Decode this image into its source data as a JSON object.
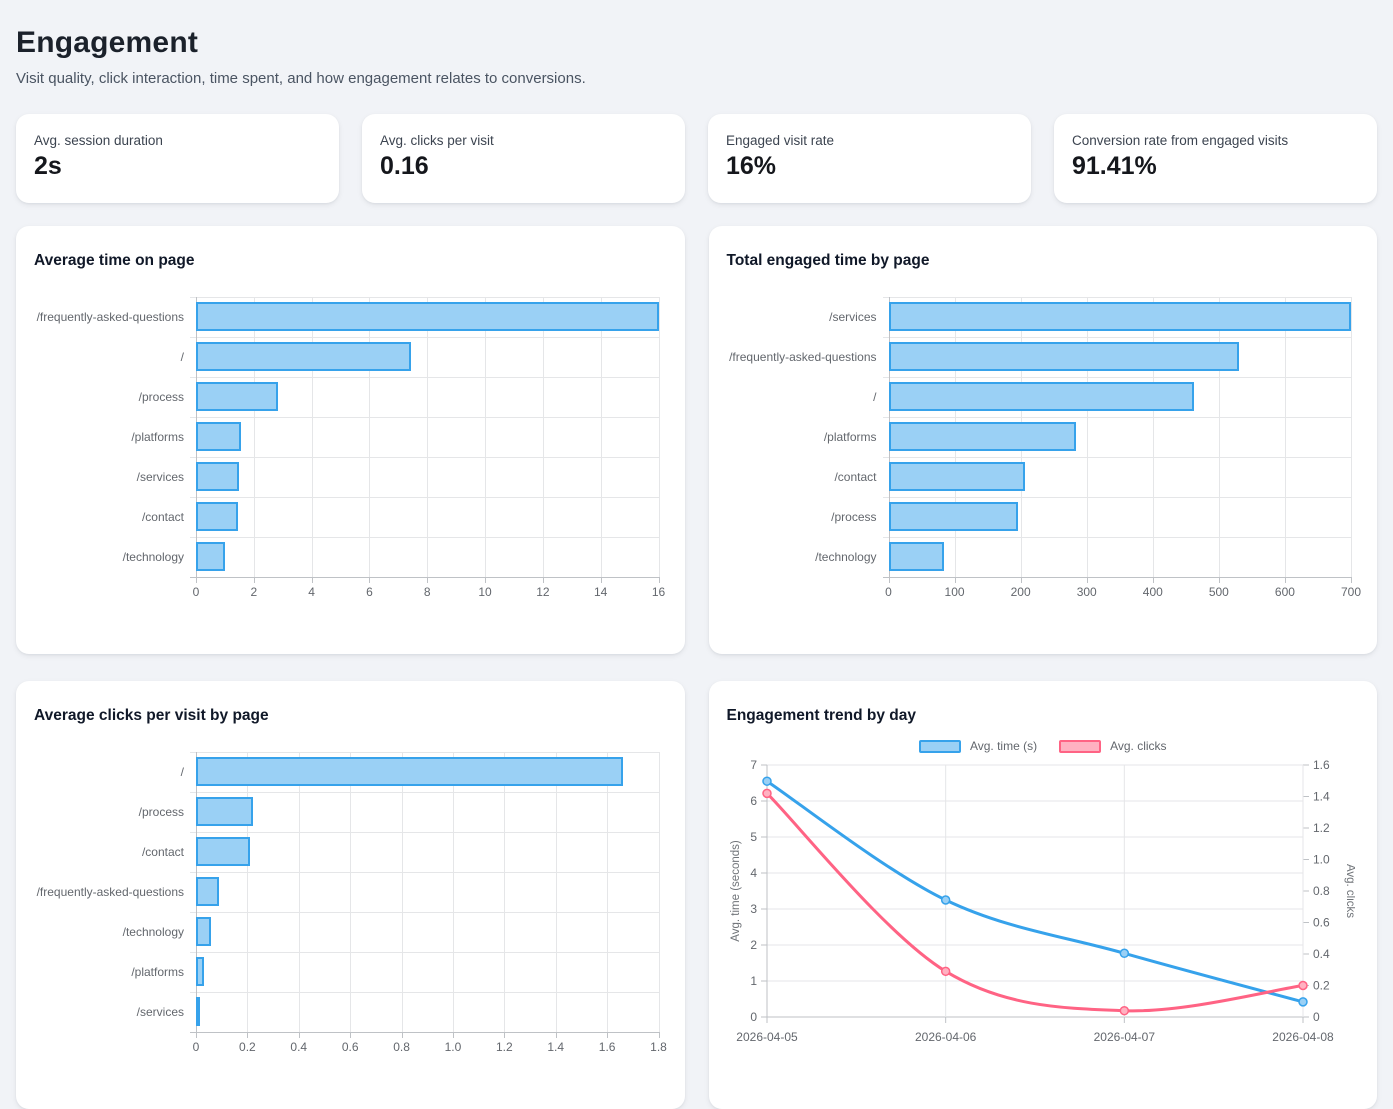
{
  "page": {
    "title": "Engagement",
    "subtitle": "Visit quality, click interaction, time spent, and how engagement relates to conversions."
  },
  "kpis": [
    {
      "label": "Avg. session duration",
      "value": "2s"
    },
    {
      "label": "Avg. clicks per visit",
      "value": "0.16"
    },
    {
      "label": "Engaged visit rate",
      "value": "16%"
    },
    {
      "label": "Conversion rate from engaged visits",
      "value": "91.41%"
    }
  ],
  "colors": {
    "bar_fill": "#9ad0f5",
    "bar_border": "#36a2eb",
    "pink_fill": "#ffb1c1",
    "pink_border": "#ff6384",
    "grid": "#e5e6e8",
    "axis": "#bfc2c6",
    "tick_text": "#63676d"
  },
  "chart_data": [
    {
      "type": "bar",
      "orientation": "horizontal",
      "title": "Average time on page",
      "categories": [
        "/frequently-asked-questions",
        "/",
        "/process",
        "/platforms",
        "/services",
        "/contact",
        "/technology"
      ],
      "values": [
        16,
        7.45,
        2.85,
        1.55,
        1.5,
        1.45,
        1.0
      ],
      "xlim": [
        0,
        16
      ],
      "xticks": [
        0,
        2,
        4,
        6,
        8,
        10,
        12,
        14,
        16
      ],
      "xtick_labels": [
        "0",
        "2",
        "4",
        "6",
        "8",
        "10",
        "12",
        "14",
        "16"
      ],
      "grid": true,
      "legend_position": "none"
    },
    {
      "type": "bar",
      "orientation": "horizontal",
      "title": "Total engaged time by page",
      "categories": [
        "/services",
        "/frequently-asked-questions",
        "/",
        "/platforms",
        "/contact",
        "/process",
        "/technology"
      ],
      "values": [
        700,
        530,
        462,
        284,
        206,
        196,
        84
      ],
      "xlim": [
        0,
        700
      ],
      "xticks": [
        0,
        100,
        200,
        300,
        400,
        500,
        600,
        700
      ],
      "xtick_labels": [
        "0",
        "100",
        "200",
        "300",
        "400",
        "500",
        "600",
        "700"
      ],
      "grid": true,
      "legend_position": "none"
    },
    {
      "type": "bar",
      "orientation": "horizontal",
      "title": "Average clicks per visit by page",
      "categories": [
        "/",
        "/process",
        "/contact",
        "/frequently-asked-questions",
        "/technology",
        "/platforms",
        "/services"
      ],
      "values": [
        1.66,
        0.22,
        0.21,
        0.09,
        0.06,
        0.03,
        0.01
      ],
      "xlim": [
        0,
        1.8
      ],
      "xticks": [
        0,
        0.2,
        0.4,
        0.6,
        0.8,
        1.0,
        1.2,
        1.4,
        1.6,
        1.8
      ],
      "xtick_labels": [
        "0",
        "0.2",
        "0.4",
        "0.6",
        "0.8",
        "1.0",
        "1.2",
        "1.4",
        "1.6",
        "1.8"
      ],
      "grid": true,
      "legend_position": "none"
    },
    {
      "type": "line",
      "title": "Engagement trend by day",
      "x": [
        "2026-04-05",
        "2026-04-06",
        "2026-04-07",
        "2026-04-08"
      ],
      "series": [
        {
          "name": "Avg. time (s)",
          "axis": "left",
          "values": [
            6.55,
            3.25,
            1.77,
            0.42
          ],
          "line_color": "#36a2eb",
          "point_fill": "#9ad0f5"
        },
        {
          "name": "Avg. clicks",
          "axis": "right",
          "values": [
            1.42,
            0.29,
            0.04,
            0.2
          ],
          "line_color": "#ff6384",
          "point_fill": "#ffb1c1"
        }
      ],
      "left_axis": {
        "label": "Avg. time (seconds)",
        "min": 0,
        "max": 7,
        "ticks": [
          0,
          1,
          2,
          3,
          4,
          5,
          6,
          7
        ],
        "tick_labels": [
          "0",
          "1",
          "2",
          "3",
          "4",
          "5",
          "6",
          "7"
        ]
      },
      "right_axis": {
        "label": "Avg. clicks",
        "min": 0,
        "max": 1.6,
        "ticks": [
          0,
          0.2,
          0.4,
          0.6,
          0.8,
          1.0,
          1.2,
          1.4,
          1.6
        ],
        "tick_labels": [
          "0",
          "0.2",
          "0.4",
          "0.6",
          "0.8",
          "1.0",
          "1.2",
          "1.4",
          "1.6"
        ]
      },
      "grid": true,
      "legend_position": "top"
    }
  ]
}
